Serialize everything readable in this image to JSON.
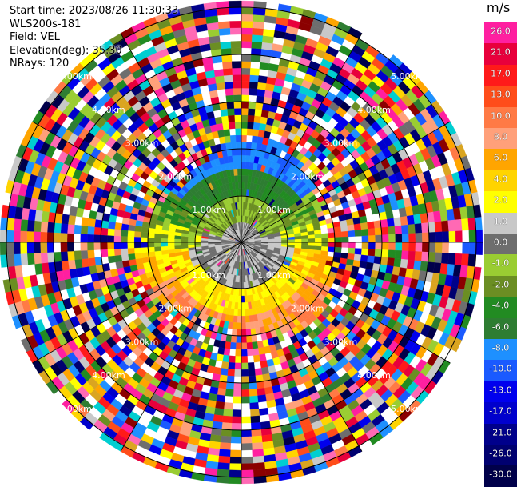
{
  "info": {
    "start_time": "Start time: 2023/08/26 11:30:33",
    "instrument": "WLS200s-181",
    "field": "Field: VEL",
    "elevation": "Elevation(deg): 35.30",
    "nrays": "NRays: 120"
  },
  "colorbar": {
    "unit": "m/s",
    "ticks": [
      "26.0",
      "21.0",
      "17.0",
      "13.0",
      "10.0",
      "8.0",
      "6.0",
      "4.0",
      "2.0",
      "1.0",
      "0.0",
      "-1.0",
      "-2.0",
      "-4.0",
      "-6.0",
      "-8.0",
      "-10.0",
      "-13.0",
      "-17.0",
      "-21.0",
      "-26.0",
      "-30.0"
    ],
    "colors": [
      "#ff1fa0",
      "#e8003c",
      "#ff1a1a",
      "#ff4d1a",
      "#ff7a45",
      "#ffa07a",
      "#ffa500",
      "#ffd400",
      "#ffff00",
      "#c8c8c8",
      "#6e6e6e",
      "#9acd32",
      "#6b8e23",
      "#228b22",
      "#2e7d32",
      "#1e90ff",
      "#1a5aff",
      "#0000ee",
      "#0000cd",
      "#00008b",
      "#000070",
      "#00004a"
    ]
  },
  "map": {
    "nrays": 120,
    "range_labels": [
      "1.00km",
      "2.00km",
      "3.00km",
      "4.00km",
      "5.00km"
    ]
  }
}
